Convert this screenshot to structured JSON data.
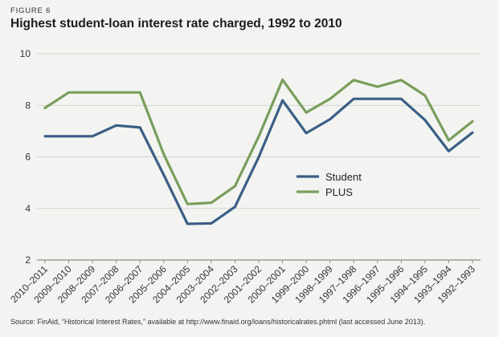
{
  "figure_label": "FIGURE 6",
  "source": "Source: FinAid, “Historical Interest Rates,” available at http://www.finaid.org/loans/historicalrates.phtml (last accessed June 2013).",
  "colors": {
    "student": "#3b5f86",
    "plus": "#7a9e5c",
    "grid": "#c9c9c4",
    "axis": "#8a8a85"
  },
  "chart_data": {
    "type": "line",
    "title": "Highest student-loan interest rate charged, 1992 to 2010",
    "xlabel": "",
    "ylabel": "",
    "ylim": [
      2,
      10
    ],
    "yticks": [
      2,
      4,
      6,
      8,
      10
    ],
    "grid": true,
    "legend_placement": "center",
    "categories": [
      "2010–2011",
      "2009–2010",
      "2008–2009",
      "2007–2008",
      "2006–2007",
      "2005–2006",
      "2004–2005",
      "2003–2004",
      "2002–2003",
      "2001–2002",
      "2000–2001",
      "1999–2000",
      "1998–1999",
      "1997–1998",
      "1996–1997",
      "1995–1996",
      "1994–1995",
      "1993–1994",
      "1992–1993"
    ],
    "series": [
      {
        "name": "Student",
        "color_key": "student",
        "values": [
          6.8,
          6.8,
          6.8,
          7.22,
          7.14,
          5.3,
          3.4,
          3.42,
          4.06,
          5.99,
          8.19,
          6.92,
          7.46,
          8.25,
          8.25,
          8.25,
          7.43,
          6.22,
          6.94
        ]
      },
      {
        "name": "PLUS",
        "color_key": "plus",
        "values": [
          7.9,
          8.5,
          8.5,
          8.5,
          8.5,
          6.1,
          4.17,
          4.22,
          4.86,
          6.79,
          8.99,
          7.72,
          8.25,
          8.98,
          8.72,
          8.98,
          8.38,
          6.64,
          7.38
        ]
      }
    ]
  }
}
